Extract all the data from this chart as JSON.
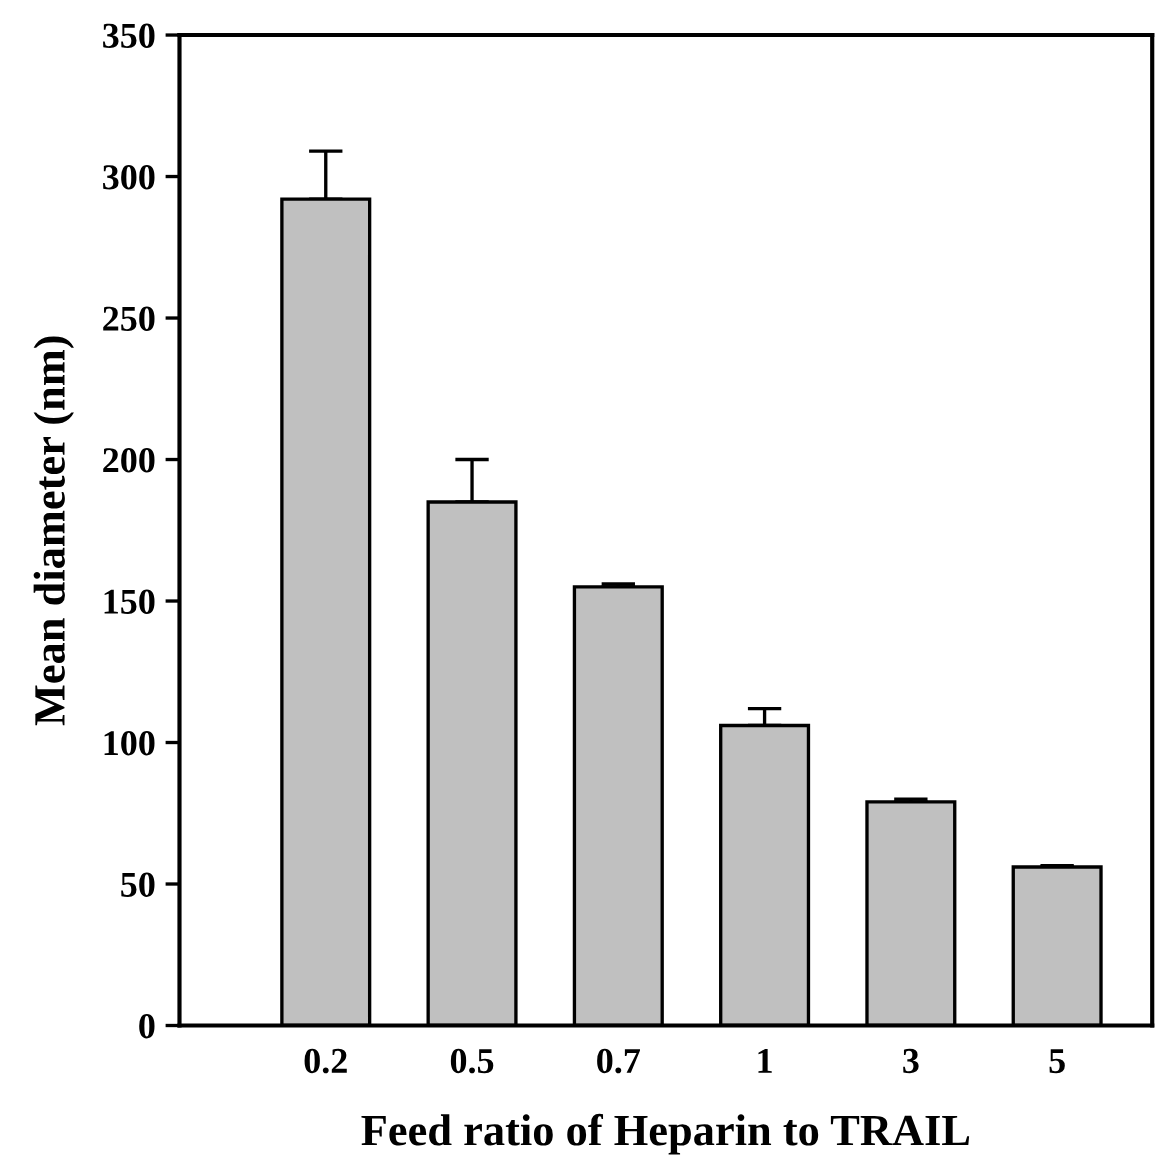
{
  "chart_data": {
    "type": "bar",
    "xlabel": "Feed ratio of Heparin to TRAIL",
    "ylabel": "Mean diameter (nm)",
    "categories": [
      "0.2",
      "0.5",
      "0.7",
      "1",
      "3",
      "5"
    ],
    "values": [
      292,
      185,
      155,
      106,
      79,
      56
    ],
    "errors": [
      [
        292,
        309
      ],
      [
        185,
        200
      ],
      [
        155,
        156
      ],
      [
        106,
        112
      ],
      [
        79,
        80
      ],
      [
        56,
        56.5
      ]
    ],
    "color": "#c0c0c0",
    "ylim": [
      0,
      350
    ],
    "yticks": [
      0,
      50,
      100,
      150,
      200,
      250,
      300,
      350
    ],
    "grid": false
  }
}
